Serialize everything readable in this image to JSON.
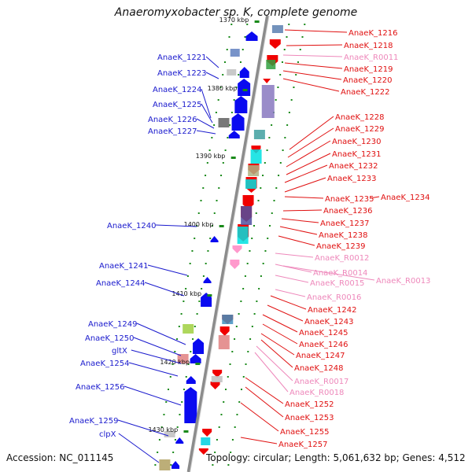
{
  "title": "Anaeromyxobacter sp. K, complete genome",
  "accession": "Accession: NC_011145",
  "topology": "Topology: circular; Length: 5,061,632 bp; Genes: 4,512",
  "colors": {
    "backbone": "#8c8c8c",
    "left_label": "#1a1acd",
    "right_label": "#e01010",
    "rna_label": "#ee88bb",
    "forward_gene": "#0a0af0",
    "reverse_gene": "#f00000",
    "rna_gene": "#ff99cc",
    "tick": "#1a8a1a"
  },
  "scale_labels": [
    "1370 kbp",
    "1380 kbp",
    "1390 kbp",
    "1400 kbp",
    "1410 kbp",
    "1420 kbp",
    "1430 kbp"
  ],
  "left_labels": [
    "AnaeK_1221",
    "AnaeK_1223",
    "AnaeK_1224",
    "AnaeK_1225",
    "AnaeK_1226",
    "AnaeK_1227",
    "AnaeK_1240",
    "AnaeK_1241",
    "AnaeK_1244",
    "AnaeK_1249",
    "AnaeK_1250",
    "gltX",
    "AnaeK_1254",
    "AnaeK_1256",
    "AnaeK_1259",
    "clpX"
  ],
  "right_labels": [
    "AnaeK_1216",
    "AnaeK_1218",
    "AnaeK_R0011",
    "AnaeK_1219",
    "AnaeK_1220",
    "AnaeK_1222",
    "AnaeK_1228",
    "AnaeK_1229",
    "AnaeK_1230",
    "AnaeK_1231",
    "AnaeK_1232",
    "AnaeK_1233",
    "AnaeK_1235",
    "AnaeK_1234",
    "AnaeK_1236",
    "AnaeK_1237",
    "AnaeK_1238",
    "AnaeK_1239",
    "AnaeK_R0012",
    "AnaeK_R0014",
    "AnaeK_R0013",
    "AnaeK_R0015",
    "AnaeK_R0016",
    "AnaeK_1242",
    "AnaeK_1243",
    "AnaeK_1245",
    "AnaeK_1246",
    "AnaeK_1247",
    "AnaeK_1248",
    "AnaeK_R0017",
    "AnaeK_R0018",
    "AnaeK_1252",
    "AnaeK_1253",
    "AnaeK_1255",
    "AnaeK_1257"
  ],
  "right_label_kinds": [
    "gene",
    "gene",
    "rna",
    "gene",
    "gene",
    "gene",
    "gene",
    "gene",
    "gene",
    "gene",
    "gene",
    "gene",
    "gene",
    "gene",
    "gene",
    "gene",
    "gene",
    "gene",
    "rna",
    "rna",
    "rna",
    "rna",
    "rna",
    "gene",
    "gene",
    "gene",
    "gene",
    "gene",
    "gene",
    "rna",
    "rna",
    "gene",
    "gene",
    "gene",
    "gene"
  ]
}
